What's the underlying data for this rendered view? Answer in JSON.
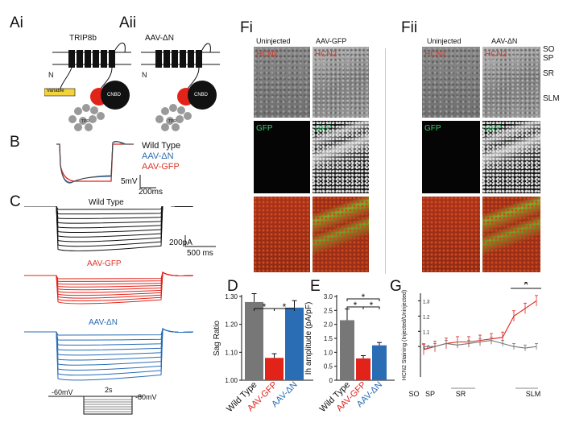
{
  "panels": {
    "Ai": "Ai",
    "Aii": "Aii",
    "B": "B",
    "C": "C",
    "Fi": "Fi",
    "Fii": "Fii",
    "D": "D",
    "E": "E",
    "G": "G"
  },
  "ai": {
    "title": "TRIP8b",
    "domain": "Variable",
    "nterm": "N",
    "cnbd": "CNBD",
    "trp": "TPR"
  },
  "aii": {
    "title": "AAV-ΔN",
    "nterm": "N",
    "cnbd": "CNBD",
    "trp": "TPR"
  },
  "b": {
    "legend": [
      "Wild Type",
      "AAV-ΔN",
      "AAV-GFP"
    ],
    "scale_v": "5mV",
    "scale_t": "200ms"
  },
  "c": {
    "labels": [
      "Wild Type",
      "AAV-GFP",
      "AAV-ΔN"
    ],
    "scale_i": "200pA",
    "scale_t": "500 ms",
    "protocol": {
      "hold": "-60mV",
      "dur": "2s",
      "low": "-80mV"
    }
  },
  "fi": {
    "cols": [
      "Uninjected",
      "AAV-GFP"
    ],
    "row_labels": [
      "HCN2",
      "GFP"
    ]
  },
  "fii": {
    "cols": [
      "Uninjected",
      "AAV-ΔN"
    ],
    "row_labels": [
      "HCN2",
      "GFP"
    ],
    "layers": [
      "SO",
      "SP",
      "SR",
      "SLM"
    ]
  },
  "colors": {
    "wt": "#777777",
    "gfp": "#e2231a",
    "dn": "#2a6db5",
    "trace_black": "#111111"
  },
  "chart_data": [
    {
      "type": "bar",
      "id": "D",
      "categories": [
        "Wild Type",
        "AAV-GFP",
        "AAV-ΔN"
      ],
      "values": [
        1.28,
        1.08,
        1.26
      ],
      "errors": [
        0.03,
        0.015,
        0.025
      ],
      "ylabel": "Sag Ratio",
      "ylim": [
        1.0,
        1.3
      ],
      "yticks": [
        "1.00",
        "1.10",
        "1.20",
        "1.30"
      ],
      "sig": [
        "*",
        "*"
      ]
    },
    {
      "type": "bar",
      "id": "E",
      "categories": [
        "Wild Type",
        "AAV-GFP",
        "AAV-ΔN"
      ],
      "values": [
        2.15,
        0.78,
        1.25
      ],
      "errors": [
        0.4,
        0.1,
        0.1
      ],
      "ylabel": "Ih amplitude (pA/pF)",
      "ylim": [
        0,
        3.0
      ],
      "yticks": [
        "0",
        "0.5",
        "1.0",
        "1.5",
        "2.0",
        "2.5",
        "3.0"
      ],
      "sig": [
        "*",
        "*",
        "*"
      ]
    },
    {
      "type": "line",
      "id": "G",
      "ylabel": "HCN2 Staining (Injected/Uninjected)",
      "ylim": [
        0.8,
        1.35
      ],
      "yticks": [
        "1.0",
        "1.1",
        "1.2",
        "1.3"
      ],
      "xlabels": [
        "SO",
        "SP",
        "SR",
        "SLM"
      ],
      "sig": "*",
      "series": [
        {
          "values": [
            0.98,
            1.0,
            1.02,
            1.03,
            1.03,
            1.04,
            1.05,
            1.06,
            1.2,
            1.25,
            1.3
          ]
        },
        {
          "values": [
            1.0,
            1.0,
            1.02,
            1.01,
            1.02,
            1.03,
            1.04,
            1.02,
            1.0,
            0.99,
            1.0
          ]
        }
      ]
    }
  ]
}
